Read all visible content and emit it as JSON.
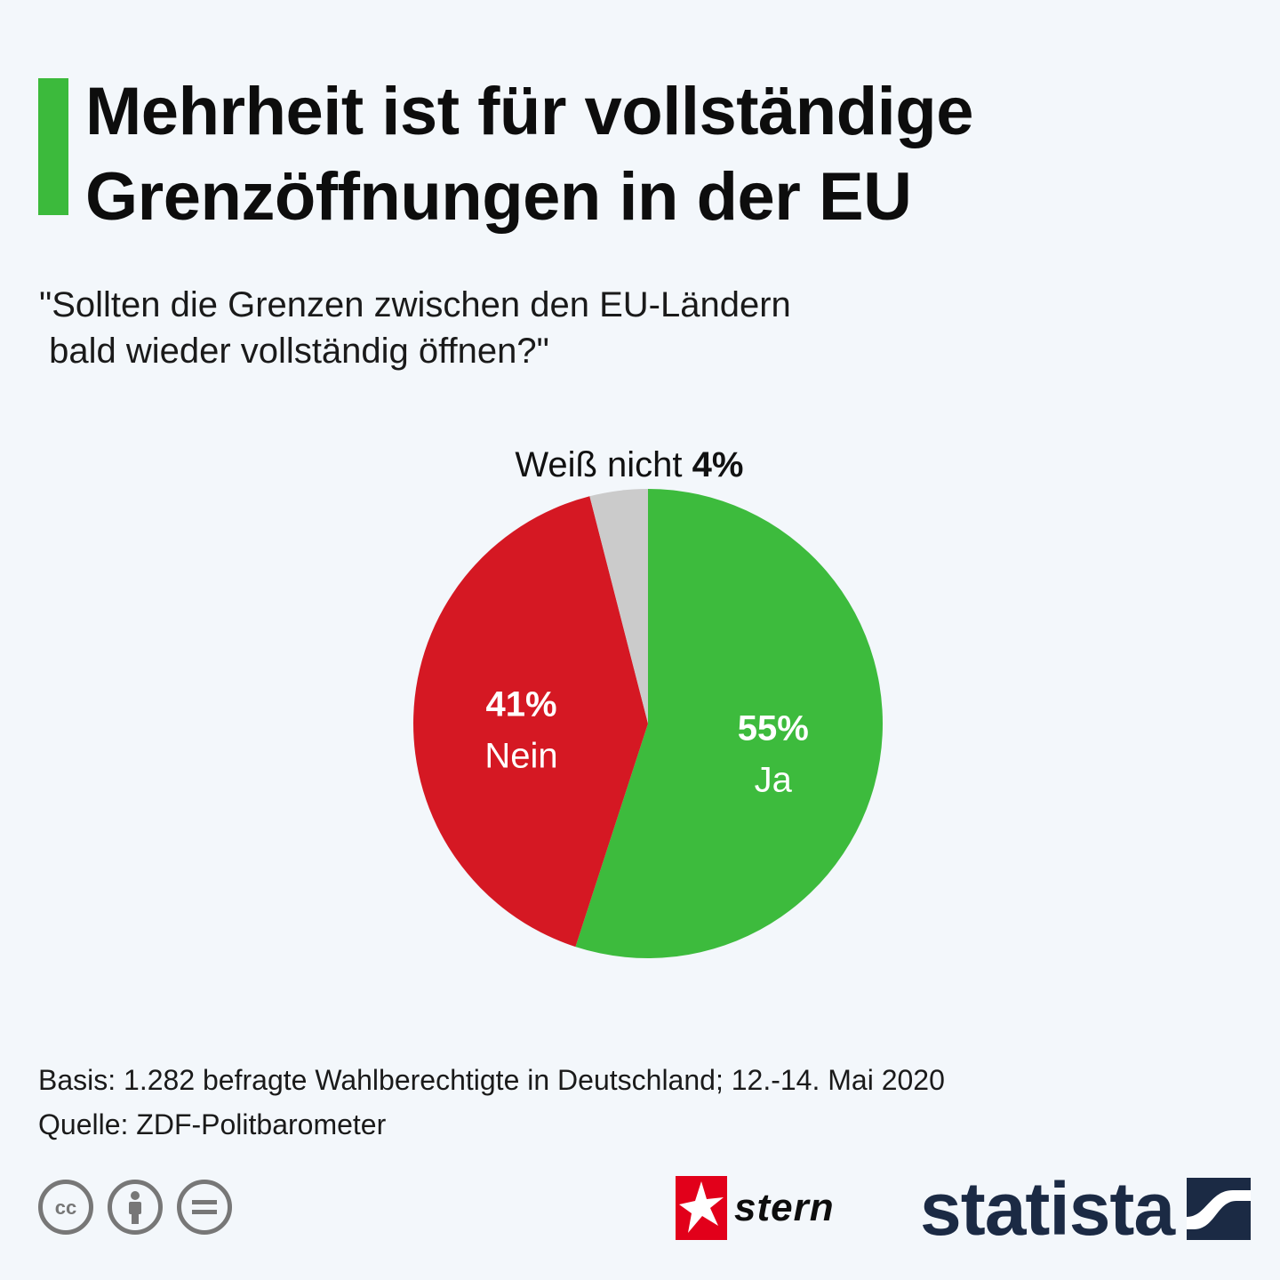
{
  "header": {
    "title_line1": "Mehrheit ist für vollständige",
    "title_line2": "Grenzöffnungen in der EU",
    "accent_color": "#3cba3c"
  },
  "question": {
    "line1": "\"Sollten die Grenzen zwischen den EU-Ländern",
    "line2": " bald wieder vollständig öffnen?\""
  },
  "chart_data": {
    "type": "pie",
    "title": "",
    "slices": [
      {
        "label": "Ja",
        "value": 55,
        "value_label": "55%",
        "color": "#3dbb3d"
      },
      {
        "label": "Nein",
        "value": 41,
        "value_label": "41%",
        "color": "#d51823"
      },
      {
        "label": "Weiß nicht",
        "value": 4,
        "value_label": "4%",
        "color": "#cbcbcb"
      }
    ]
  },
  "footer": {
    "basis": "Basis: 1.282 befragte Wahlberechtigte in Deutschland; 12.-14. Mai 2020",
    "source": "Quelle: ZDF-Politbarometer"
  },
  "branding": {
    "license_icons": [
      "cc-icon",
      "attribution-icon",
      "no-derivatives-icon"
    ],
    "stern_logo_text": "stern",
    "statista_logo_text": "statista"
  }
}
